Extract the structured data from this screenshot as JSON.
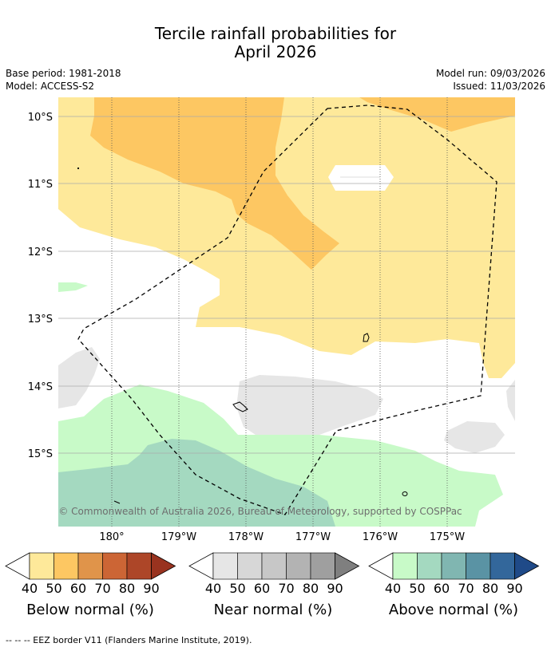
{
  "title_line1": "Tercile rainfall probabilities for",
  "title_line2": "April 2026",
  "base_period": "Base period: 1981-2018",
  "model": "Model: ACCESS-S2",
  "model_run": "Model run: 09/03/2026",
  "issued": "Issued: 11/03/2026",
  "lat_labels": [
    "10°S",
    "11°S",
    "12°S",
    "13°S",
    "14°S",
    "15°S"
  ],
  "lon_labels": [
    "180°",
    "179°W",
    "178°W",
    "177°W",
    "176°W",
    "175°W"
  ],
  "copyright": "© Commonwealth of Australia 2026, Bureau of Meteorology, supported by COSPPac",
  "colorbars": [
    {
      "title": "Below normal (%)",
      "ticks": [
        "40",
        "50",
        "60",
        "70",
        "80",
        "90"
      ],
      "colors": [
        "#fee99a",
        "#fdc762",
        "#e0944a",
        "#cc6535",
        "#ad4628",
        "#99331f"
      ]
    },
    {
      "title": "Near normal (%)",
      "ticks": [
        "40",
        "50",
        "60",
        "70",
        "80",
        "90"
      ],
      "colors": [
        "#e6e6e6",
        "#d7d7d7",
        "#c7c7c7",
        "#b3b3b3",
        "#9f9f9f",
        "#7f7f7f"
      ]
    },
    {
      "title": "Above normal (%)",
      "ticks": [
        "40",
        "50",
        "60",
        "70",
        "80",
        "90"
      ],
      "colors": [
        "#c8fac8",
        "#a4d9c0",
        "#80b6b1",
        "#5a93a4",
        "#33679b",
        "#1f4a88"
      ]
    }
  ],
  "footnote": "-- -- -- EEZ border V11 (Flanders Marine Institute, 2019)."
}
